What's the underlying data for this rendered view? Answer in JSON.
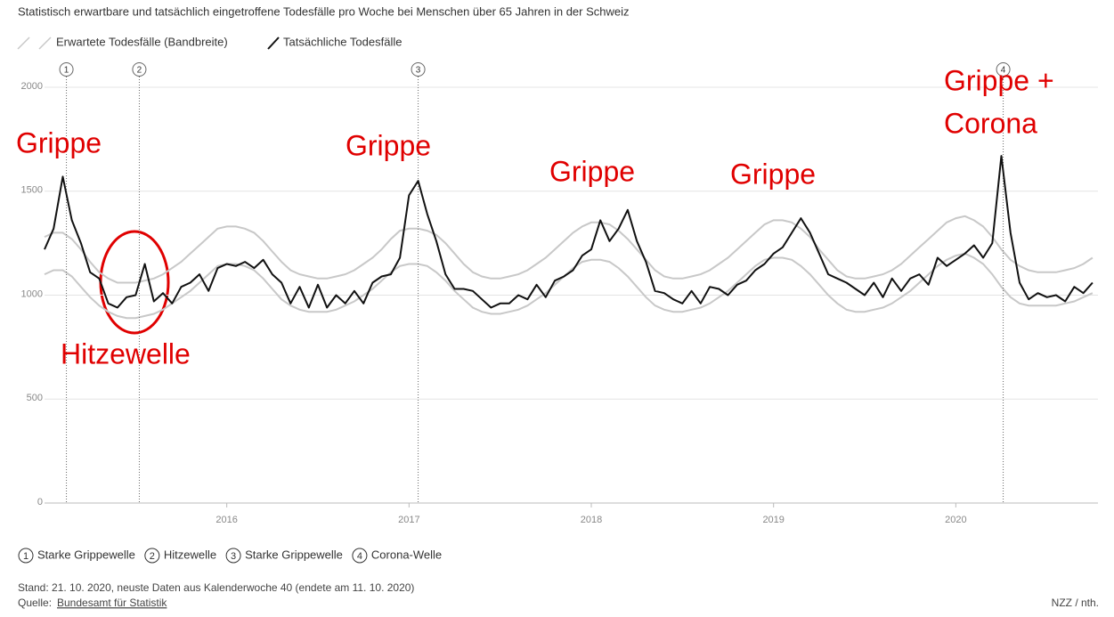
{
  "chart_data": {
    "type": "line",
    "title": "Statistisch erwartbare und tatsächlich eingetroffene Todesfälle pro Woche bei Menschen über 65 Jahren in der Schweiz",
    "xlim": [
      2015,
      2020.78
    ],
    "xticks": [
      2016,
      2017,
      2018,
      2019,
      2020
    ],
    "ylim": [
      0,
      2000
    ],
    "yticks": [
      0,
      500,
      1000,
      1500,
      2000
    ],
    "grid": true,
    "x": [
      2015.0,
      2015.05,
      2015.1,
      2015.15,
      2015.2,
      2015.25,
      2015.3,
      2015.35,
      2015.4,
      2015.45,
      2015.5,
      2015.55,
      2015.6,
      2015.65,
      2015.7,
      2015.75,
      2015.8,
      2015.85,
      2015.9,
      2015.95,
      2016.0,
      2016.05,
      2016.1,
      2016.15,
      2016.2,
      2016.25,
      2016.3,
      2016.35,
      2016.4,
      2016.45,
      2016.5,
      2016.55,
      2016.6,
      2016.65,
      2016.7,
      2016.75,
      2016.8,
      2016.85,
      2016.9,
      2016.95,
      2017.0,
      2017.05,
      2017.1,
      2017.15,
      2017.2,
      2017.25,
      2017.3,
      2017.35,
      2017.4,
      2017.45,
      2017.5,
      2017.55,
      2017.6,
      2017.65,
      2017.7,
      2017.75,
      2017.8,
      2017.85,
      2017.9,
      2017.95,
      2018.0,
      2018.05,
      2018.1,
      2018.15,
      2018.2,
      2018.25,
      2018.3,
      2018.35,
      2018.4,
      2018.45,
      2018.5,
      2018.55,
      2018.6,
      2018.65,
      2018.7,
      2018.75,
      2018.8,
      2018.85,
      2018.9,
      2018.95,
      2019.0,
      2019.05,
      2019.1,
      2019.15,
      2019.2,
      2019.25,
      2019.3,
      2019.35,
      2019.4,
      2019.45,
      2019.5,
      2019.55,
      2019.6,
      2019.65,
      2019.7,
      2019.75,
      2019.8,
      2019.85,
      2019.9,
      2019.95,
      2020.0,
      2020.05,
      2020.1,
      2020.15,
      2020.2,
      2020.25,
      2020.3,
      2020.35,
      2020.4,
      2020.45,
      2020.5,
      2020.55,
      2020.6,
      2020.65,
      2020.7,
      2020.75
    ],
    "series": [
      {
        "name": "Erwartete Todesfälle (Bandbreite)",
        "color": "#c8c8c8",
        "upper": [
          1280,
          1300,
          1300,
          1270,
          1220,
          1160,
          1110,
          1080,
          1060,
          1060,
          1060,
          1070,
          1080,
          1100,
          1130,
          1160,
          1200,
          1240,
          1280,
          1320,
          1330,
          1330,
          1320,
          1300,
          1260,
          1210,
          1160,
          1120,
          1100,
          1090,
          1080,
          1080,
          1090,
          1100,
          1120,
          1150,
          1180,
          1220,
          1270,
          1310,
          1320,
          1320,
          1310,
          1290,
          1250,
          1200,
          1150,
          1110,
          1090,
          1080,
          1080,
          1090,
          1100,
          1120,
          1150,
          1180,
          1220,
          1260,
          1300,
          1330,
          1350,
          1350,
          1340,
          1310,
          1270,
          1220,
          1170,
          1120,
          1090,
          1080,
          1080,
          1090,
          1100,
          1120,
          1150,
          1180,
          1220,
          1260,
          1300,
          1340,
          1360,
          1360,
          1350,
          1320,
          1280,
          1220,
          1170,
          1120,
          1090,
          1080,
          1080,
          1090,
          1100,
          1120,
          1150,
          1190,
          1230,
          1270,
          1310,
          1350,
          1370,
          1380,
          1360,
          1330,
          1280,
          1220,
          1170,
          1140,
          1120,
          1110,
          1110,
          1110,
          1120,
          1130,
          1150,
          1180
        ],
        "lower": [
          1100,
          1120,
          1120,
          1090,
          1040,
          990,
          950,
          920,
          900,
          890,
          890,
          900,
          910,
          930,
          960,
          990,
          1020,
          1060,
          1100,
          1140,
          1150,
          1150,
          1140,
          1120,
          1080,
          1030,
          980,
          950,
          930,
          920,
          920,
          920,
          930,
          950,
          970,
          1000,
          1030,
          1070,
          1110,
          1140,
          1150,
          1150,
          1140,
          1110,
          1070,
          1020,
          980,
          940,
          920,
          910,
          910,
          920,
          930,
          950,
          980,
          1010,
          1050,
          1090,
          1130,
          1160,
          1170,
          1170,
          1160,
          1130,
          1090,
          1040,
          990,
          950,
          930,
          920,
          920,
          930,
          940,
          960,
          990,
          1020,
          1060,
          1100,
          1140,
          1170,
          1180,
          1180,
          1170,
          1140,
          1100,
          1050,
          1000,
          960,
          930,
          920,
          920,
          930,
          940,
          960,
          990,
          1020,
          1060,
          1100,
          1140,
          1170,
          1190,
          1200,
          1180,
          1150,
          1100,
          1040,
          990,
          960,
          950,
          950,
          950,
          950,
          960,
          970,
          990,
          1010
        ]
      },
      {
        "name": "Tatsächliche Todesfälle",
        "color": "#111111",
        "values": [
          1220,
          1320,
          1570,
          1360,
          1250,
          1110,
          1080,
          960,
          940,
          990,
          1000,
          1150,
          970,
          1010,
          960,
          1040,
          1060,
          1100,
          1020,
          1130,
          1150,
          1140,
          1160,
          1130,
          1170,
          1100,
          1060,
          960,
          1040,
          940,
          1050,
          940,
          1000,
          960,
          1020,
          960,
          1060,
          1090,
          1100,
          1180,
          1480,
          1550,
          1390,
          1260,
          1100,
          1030,
          1030,
          1020,
          980,
          940,
          960,
          960,
          1000,
          980,
          1050,
          990,
          1070,
          1090,
          1120,
          1190,
          1220,
          1360,
          1260,
          1320,
          1410,
          1260,
          1160,
          1020,
          1010,
          980,
          960,
          1020,
          960,
          1040,
          1030,
          1000,
          1050,
          1070,
          1120,
          1150,
          1200,
          1230,
          1300,
          1370,
          1300,
          1200,
          1100,
          1080,
          1060,
          1030,
          1000,
          1060,
          990,
          1080,
          1020,
          1080,
          1100,
          1050,
          1180,
          1140,
          1170,
          1200,
          1240,
          1180,
          1250,
          1670,
          1300,
          1060,
          980,
          1010,
          990,
          1000,
          970,
          1040,
          1010,
          1060
        ]
      }
    ],
    "markers": [
      {
        "x": 2015.12,
        "label": "1",
        "name": "Starke Grippewelle"
      },
      {
        "x": 2015.52,
        "label": "2",
        "name": "Hitzewelle"
      },
      {
        "x": 2017.05,
        "label": "3",
        "name": "Starke Grippewelle"
      },
      {
        "x": 2020.26,
        "label": "4",
        "name": "Corona-Welle"
      }
    ],
    "annotations": [
      "Grippe",
      "Hitzewelle",
      "Grippe",
      "Grippe",
      "Grippe",
      "Grippe +",
      "Corona"
    ],
    "footer": {
      "stand": "Stand: 21. 10. 2020, neuste Daten aus Kalenderwoche 40 (endete am 11. 10. 2020)",
      "source_prefix": "Quelle:",
      "source": "Bundesamt für Statistik",
      "credit": "NZZ / nth."
    }
  }
}
